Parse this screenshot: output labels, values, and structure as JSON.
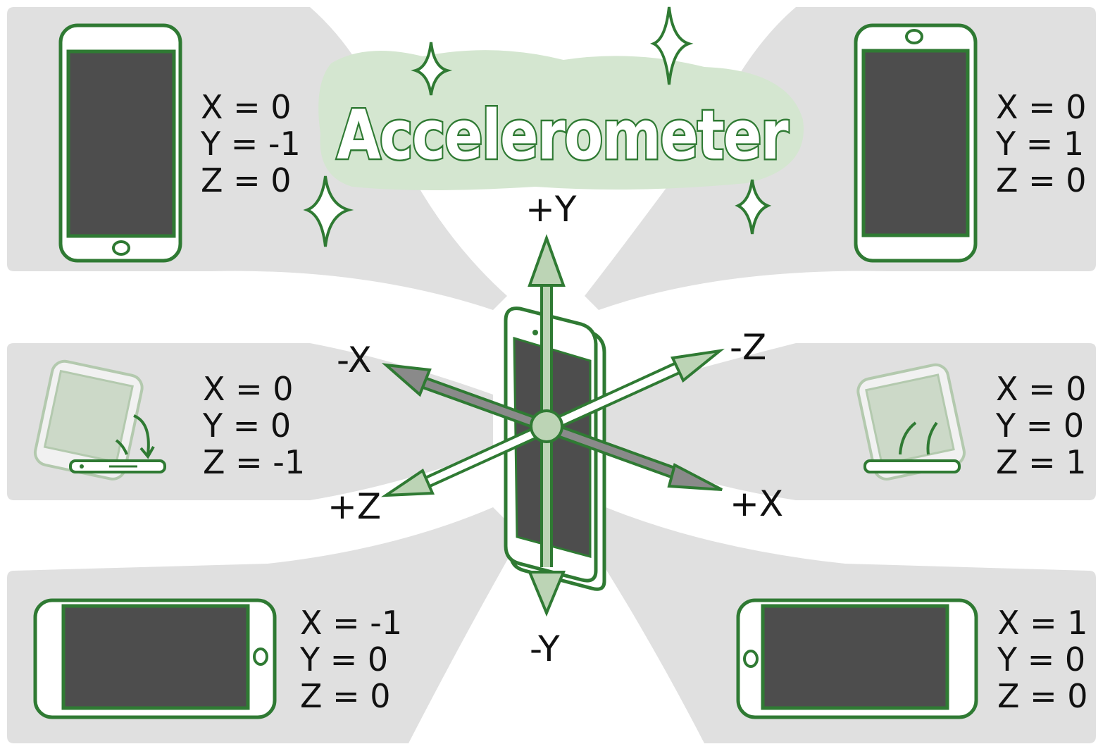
{
  "title": "Accelerometer",
  "colors": {
    "green": "#2f7a33",
    "pale_green": "#d4e6d0",
    "light_green": "#bcd4b5",
    "screen": "#4d4d4d",
    "panel_gray": "#e0e0e0",
    "arrow_gray": "#8a8a8a"
  },
  "axes": {
    "plus_y": "+Y",
    "minus_y": "-Y",
    "plus_x": "+X",
    "minus_x": "-X",
    "plus_z": "+Z",
    "minus_z": "-Z"
  },
  "orientations": {
    "portrait_upside_down": {
      "x": "X = 0",
      "y": "Y = -1",
      "z": "Z = 0"
    },
    "portrait_upright": {
      "x": "X = 0",
      "y": "Y = 1",
      "z": "Z = 0"
    },
    "face_down": {
      "x": "X = 0",
      "y": "Y = 0",
      "z": "Z = -1"
    },
    "face_up": {
      "x": "X = 0",
      "y": "Y = 0",
      "z": "Z = 1"
    },
    "landscape_left": {
      "x": "X = -1",
      "y": "Y = 0",
      "z": "Z = 0"
    },
    "landscape_right": {
      "x": "X = 1",
      "y": "Y = 0",
      "z": "Z = 0"
    }
  }
}
